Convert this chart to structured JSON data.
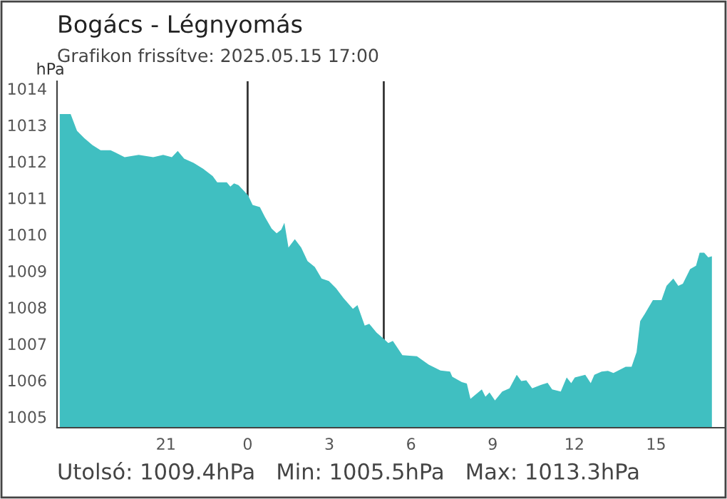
{
  "chart_data": {
    "type": "area",
    "title": "Bogács - Légnyomás",
    "subtitle": "Grafikon frissítve: 2025.05.15 17:00",
    "ylabel": "hPa",
    "annotations": [
      "Utolsó: 1009.4hPa   Min: 1005.5hPa   Max: 1013.3hPa"
    ],
    "series": [
      {
        "color": "#40bfc1",
        "x": [
          "2025-05-14T17:06",
          "2025-05-14T17:30",
          "2025-05-14T17:44",
          "2025-05-14T18:00",
          "2025-05-14T18:18",
          "2025-05-14T18:36",
          "2025-05-14T18:58",
          "2025-05-14T19:08",
          "2025-05-14T19:29",
          "2025-05-14T20:00",
          "2025-05-14T20:32",
          "2025-05-14T20:54",
          "2025-05-14T21:13",
          "2025-05-14T21:26",
          "2025-05-14T21:40",
          "2025-05-14T22:01",
          "2025-05-14T22:22",
          "2025-05-14T22:43",
          "2025-05-14T22:53",
          "2025-05-14T23:14",
          "2025-05-14T23:22",
          "2025-05-14T23:30",
          "2025-05-14T23:40",
          "2025-05-15T00:01",
          "2025-05-15T00:11",
          "2025-05-15T00:27",
          "2025-05-15T00:38",
          "2025-05-15T00:53",
          "2025-05-15T01:04",
          "2025-05-15T01:14",
          "2025-05-15T01:21",
          "2025-05-15T01:30",
          "2025-05-15T01:44",
          "2025-05-15T01:58",
          "2025-05-15T02:12",
          "2025-05-15T02:28",
          "2025-05-15T02:43",
          "2025-05-15T02:59",
          "2025-05-15T03:15",
          "2025-05-15T03:31",
          "2025-05-15T03:52",
          "2025-05-15T04:02",
          "2025-05-15T04:18",
          "2025-05-15T04:28",
          "2025-05-15T04:44",
          "2025-05-15T04:59",
          "2025-05-15T05:10",
          "2025-05-15T05:20",
          "2025-05-15T05:41",
          "2025-05-15T06:13",
          "2025-05-15T06:39",
          "2025-05-15T07:05",
          "2025-05-15T07:26",
          "2025-05-15T07:31",
          "2025-05-15T07:52",
          "2025-05-15T08:03",
          "2025-05-15T08:11",
          "2025-05-15T08:36",
          "2025-05-15T08:44",
          "2025-05-15T08:53",
          "2025-05-15T09:05",
          "2025-05-15T09:21",
          "2025-05-15T09:37",
          "2025-05-15T09:53",
          "2025-05-15T10:03",
          "2025-05-15T10:14",
          "2025-05-15T10:27",
          "2025-05-15T10:45",
          "2025-05-15T11:01",
          "2025-05-15T11:11",
          "2025-05-15T11:30",
          "2025-05-15T11:43",
          "2025-05-15T11:53",
          "2025-05-15T12:01",
          "2025-05-15T12:24",
          "2025-05-15T12:36",
          "2025-05-15T12:44",
          "2025-05-15T13:00",
          "2025-05-15T13:14",
          "2025-05-15T13:26",
          "2025-05-15T13:53",
          "2025-05-15T14:06",
          "2025-05-15T14:17",
          "2025-05-15T14:25",
          "2025-05-15T14:35",
          "2025-05-15T14:53",
          "2025-05-15T15:12",
          "2025-05-15T15:23",
          "2025-05-15T15:38",
          "2025-05-15T15:49",
          "2025-05-15T15:59",
          "2025-05-15T16:15",
          "2025-05-15T16:28",
          "2025-05-15T16:36",
          "2025-05-15T16:46",
          "2025-05-15T16:55",
          "2025-05-15T17:03"
        ],
        "values": [
          1013.3,
          1013.3,
          1012.84,
          1012.64,
          1012.45,
          1012.31,
          1012.31,
          1012.25,
          1012.12,
          1012.18,
          1012.12,
          1012.18,
          1012.12,
          1012.29,
          1012.08,
          1011.96,
          1011.8,
          1011.6,
          1011.43,
          1011.43,
          1011.31,
          1011.4,
          1011.35,
          1011.07,
          1010.81,
          1010.75,
          1010.48,
          1010.16,
          1010.03,
          1010.13,
          1010.32,
          1009.64,
          1009.87,
          1009.64,
          1009.27,
          1009.11,
          1008.79,
          1008.72,
          1008.52,
          1008.26,
          1007.96,
          1008.06,
          1007.5,
          1007.55,
          1007.31,
          1007.15,
          1007.02,
          1007.08,
          1006.69,
          1006.66,
          1006.43,
          1006.27,
          1006.24,
          1006.1,
          1005.95,
          1005.91,
          1005.49,
          1005.75,
          1005.55,
          1005.67,
          1005.45,
          1005.69,
          1005.78,
          1006.15,
          1005.98,
          1006.0,
          1005.78,
          1005.87,
          1005.93,
          1005.75,
          1005.69,
          1006.08,
          1005.92,
          1006.08,
          1006.15,
          1005.92,
          1006.15,
          1006.24,
          1006.26,
          1006.2,
          1006.37,
          1006.37,
          1006.77,
          1007.62,
          1007.82,
          1008.2,
          1008.2,
          1008.59,
          1008.79,
          1008.59,
          1008.65,
          1009.05,
          1009.14,
          1009.5,
          1009.5,
          1009.37,
          1009.4
        ]
      }
    ],
    "xlim": [
      "2025-05-14T17:00",
      "2025-05-15T17:30"
    ],
    "xticks": [
      {
        "value": "2025-05-14T21:00",
        "label": "21"
      },
      {
        "value": "2025-05-15T00:00",
        "label": "0"
      },
      {
        "value": "2025-05-15T03:00",
        "label": "3"
      },
      {
        "value": "2025-05-15T06:00",
        "label": "6"
      },
      {
        "value": "2025-05-15T09:00",
        "label": "9"
      },
      {
        "value": "2025-05-15T12:00",
        "label": "12"
      },
      {
        "value": "2025-05-15T15:00",
        "label": "15"
      }
    ],
    "ylim": [
      1004.7,
      1014.2
    ],
    "yticks": [
      1005,
      1006,
      1007,
      1008,
      1009,
      1010,
      1011,
      1012,
      1013,
      1014
    ],
    "ref_lines": [
      {
        "axis": "x",
        "value": "2025-05-15T00:00",
        "color": "#333333"
      },
      {
        "axis": "x",
        "value": "2025-05-15T05:00",
        "color": "#333333"
      }
    ],
    "grid": false,
    "legend": false
  }
}
